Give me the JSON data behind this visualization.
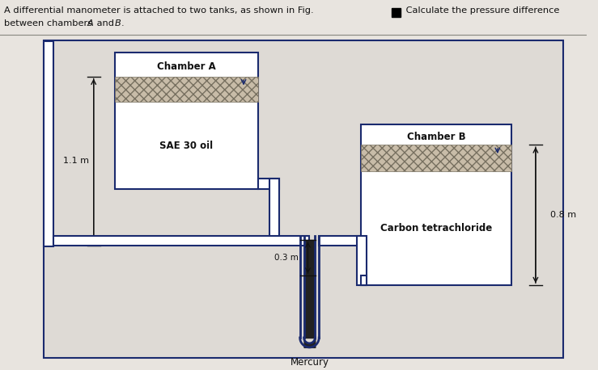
{
  "fig_bg": "#e8e4df",
  "diagram_bg": "#dedad5",
  "tank_color": "#1a2a6e",
  "fluid_hatch_color": "#9a9080",
  "mercury_color": "#2a2a2a",
  "pipe_color": "#1a2a6e",
  "text_color": "#111111",
  "chamber_a_label": "Chamber A",
  "chamber_b_label": "Chamber B",
  "fluid_a_label": "SAE 30 oil",
  "fluid_b_label": "Carbon tetrachloride",
  "mercury_label": "Mercury",
  "dim_11": "1.1 m",
  "dim_03": "0.3 m",
  "dim_08": "0.8 m",
  "title1": "A differential manometer is attached to two tanks, as shown in Fig.",
  "title2": " Calculate the pressure difference",
  "title3": "between chambers ",
  "title4": " and ",
  "title5": "A",
  "title6": "B"
}
